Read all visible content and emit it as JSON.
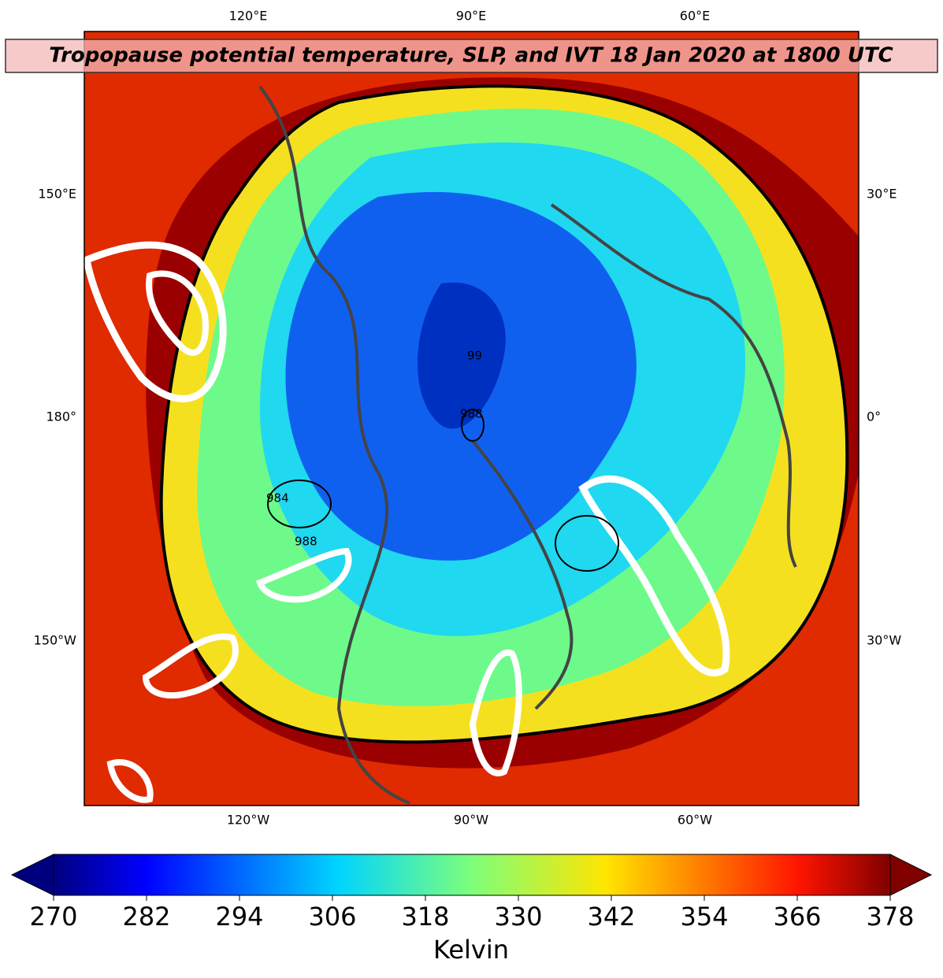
{
  "title": "Tropopause potential temperature, SLP, and IVT 18 Jan 2020 at 1800 UTC",
  "map": {
    "top_labels": [
      "120°E",
      "90°E",
      "60°E"
    ],
    "bottom_labels": [
      "120°W",
      "90°W",
      "60°W"
    ],
    "left_labels": [
      "150°E",
      "180°",
      "150°W"
    ],
    "right_labels": [
      "30°E",
      "0°",
      "30°W"
    ],
    "contour_labels": [
      "988",
      "984",
      "99",
      "988"
    ]
  },
  "colorbar": {
    "range": [
      270,
      378
    ],
    "ticks": [
      270,
      282,
      294,
      306,
      318,
      330,
      342,
      354,
      366,
      378
    ],
    "label": "Kelvin"
  }
}
